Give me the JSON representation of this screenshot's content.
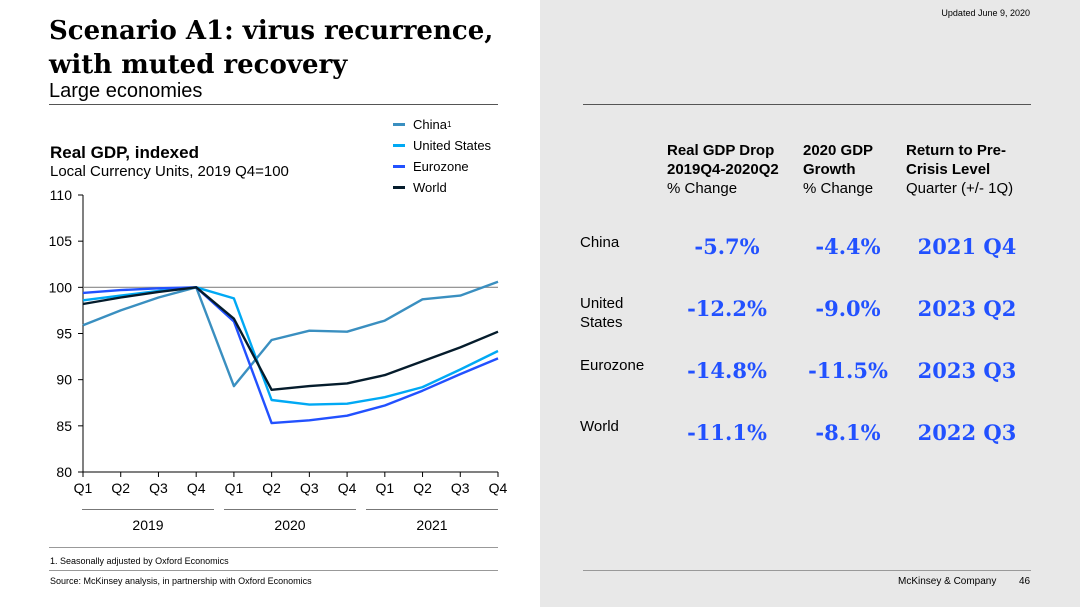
{
  "header": {
    "title_line1": "Scenario A1: virus recurrence,",
    "title_line2": "with muted recovery",
    "subtitle": "Large economies",
    "updated": "Updated June 9, 2020"
  },
  "chart_data": {
    "type": "line",
    "title": "Real GDP, indexed",
    "subtitle": "Local Currency Units, 2019 Q4=100",
    "categories": [
      "Q1",
      "Q2",
      "Q3",
      "Q4",
      "Q1",
      "Q2",
      "Q3",
      "Q4",
      "Q1",
      "Q2",
      "Q3",
      "Q4"
    ],
    "year_groups": [
      "2019",
      "2020",
      "2021"
    ],
    "ylim": [
      80,
      110
    ],
    "yticks": [
      80,
      85,
      90,
      95,
      100,
      105,
      110
    ],
    "reference_line": 100,
    "series": [
      {
        "name": "China",
        "legend_sup": "1",
        "color": "#3a8fc0",
        "values": [
          95.9,
          97.5,
          98.9,
          100,
          89.3,
          94.3,
          95.3,
          95.2,
          96.4,
          98.7,
          99.1,
          100.6
        ]
      },
      {
        "name": "United States",
        "legend_sup": "",
        "color": "#00a9f4",
        "values": [
          98.6,
          99.1,
          99.6,
          100,
          98.8,
          87.8,
          87.3,
          87.4,
          88.1,
          89.2,
          91.1,
          93.1
        ]
      },
      {
        "name": "Eurozone",
        "legend_sup": "",
        "color": "#2251ff",
        "values": [
          99.4,
          99.7,
          99.9,
          100,
          96.3,
          85.3,
          85.6,
          86.1,
          87.2,
          88.8,
          90.6,
          92.3
        ]
      },
      {
        "name": "World",
        "legend_sup": "",
        "color": "#051c2c",
        "values": [
          98.2,
          98.9,
          99.5,
          100,
          96.6,
          88.9,
          89.3,
          89.6,
          90.5,
          92.0,
          93.5,
          95.2
        ]
      }
    ]
  },
  "table": {
    "headers": [
      {
        "bold1": "Real GDP Drop",
        "bold2": "2019Q4-2020Q2",
        "unit": "% Change"
      },
      {
        "bold1": "2020 GDP",
        "bold2": "Growth",
        "unit": "% Change"
      },
      {
        "bold1": "Return to Pre-",
        "bold2": "Crisis Level",
        "unit": "Quarter (+/- 1Q)"
      }
    ],
    "rows": [
      {
        "label_line1": "China",
        "label_line2": "",
        "drop": "-5.7%",
        "growth": "-4.4%",
        "return": "2021 Q4"
      },
      {
        "label_line1": "United",
        "label_line2": "States",
        "drop": "-12.2%",
        "growth": "-9.0%",
        "return": "2023 Q2"
      },
      {
        "label_line1": "Eurozone",
        "label_line2": "",
        "drop": "-14.8%",
        "growth": "-11.5%",
        "return": "2023 Q3"
      },
      {
        "label_line1": "World",
        "label_line2": "",
        "drop": "-11.1%",
        "growth": "-8.1%",
        "return": "2022 Q3"
      }
    ]
  },
  "footer": {
    "footnote": "1.    Seasonally adjusted by Oxford Economics",
    "source": "Source: McKinsey analysis, in partnership with Oxford Economics",
    "brand": "McKinsey & Company",
    "page": "46"
  }
}
